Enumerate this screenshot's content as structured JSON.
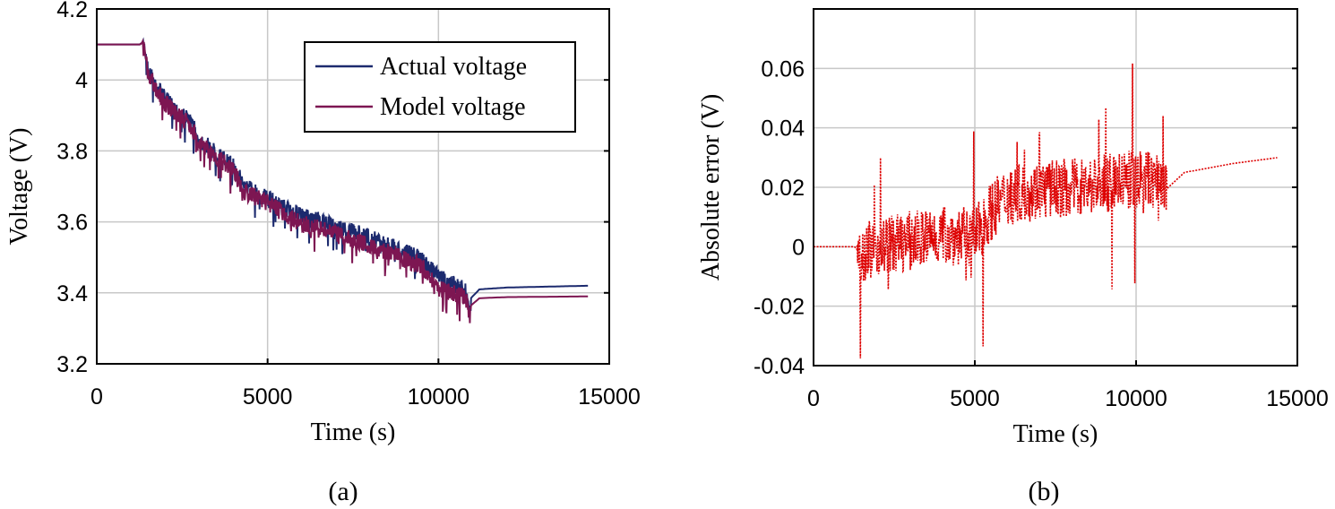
{
  "chart_data": [
    {
      "type": "line",
      "caption": "(a)",
      "xlabel": "Time (s)",
      "ylabel": "Voltage (V)",
      "xlim": [
        0,
        15000
      ],
      "ylim": [
        3.2,
        4.2
      ],
      "xticks": [
        "0",
        "5000",
        "10000",
        "15000"
      ],
      "yticks": [
        "3.2",
        "3.4",
        "3.6",
        "3.8",
        "4",
        "4.2"
      ],
      "grid": true,
      "legend_position": "top-right",
      "series": [
        {
          "name": "Actual voltage",
          "color": "#1c2a6e",
          "x": [
            0,
            1300,
            1400,
            1500,
            2000,
            2800,
            2950,
            4000,
            4300,
            5000,
            5600,
            6000,
            7000,
            8000,
            8500,
            9500,
            10000,
            10800,
            10900,
            11200,
            12000,
            14400
          ],
          "y": [
            4.1,
            4.1,
            4.12,
            4.05,
            3.97,
            3.9,
            3.86,
            3.78,
            3.73,
            3.69,
            3.66,
            3.64,
            3.61,
            3.58,
            3.56,
            3.52,
            3.47,
            3.43,
            3.38,
            3.41,
            3.415,
            3.42
          ]
        },
        {
          "name": "Model voltage",
          "color": "#7d1652",
          "x": [
            0,
            1300,
            1400,
            1500,
            2000,
            2800,
            2950,
            4000,
            4300,
            5000,
            5600,
            6000,
            7000,
            8000,
            8500,
            9500,
            10000,
            10800,
            10900,
            11200,
            12000,
            14400
          ],
          "y": [
            4.1,
            4.1,
            4.12,
            4.04,
            3.96,
            3.89,
            3.85,
            3.77,
            3.71,
            3.68,
            3.64,
            3.62,
            3.59,
            3.56,
            3.54,
            3.5,
            3.44,
            3.41,
            3.36,
            3.385,
            3.388,
            3.39
          ]
        }
      ]
    },
    {
      "type": "line",
      "caption": "(b)",
      "xlabel": "Time (s)",
      "ylabel": "Absolute error (V)",
      "xlim": [
        0,
        15000
      ],
      "ylim": [
        -0.04,
        0.08
      ],
      "xticks": [
        "0",
        "5000",
        "10000",
        "15000"
      ],
      "yticks": [
        "-0.04",
        "-0.02",
        "0",
        "0.02",
        "0.04",
        "0.06"
      ],
      "grid": true,
      "series": [
        {
          "color": "#dd0000",
          "style": "dotted",
          "x": [
            0,
            1300,
            1400,
            2000,
            3000,
            4000,
            5000,
            5500,
            6000,
            7000,
            8000,
            9000,
            10000,
            10800,
            10900,
            11500,
            12000,
            13000,
            14400
          ],
          "y": [
            0,
            0,
            -0.002,
            0.0,
            0.002,
            0.004,
            0.003,
            0.012,
            0.017,
            0.019,
            0.02,
            0.021,
            0.023,
            0.022,
            0.019,
            0.025,
            0.026,
            0.028,
            0.03
          ]
        }
      ]
    }
  ]
}
